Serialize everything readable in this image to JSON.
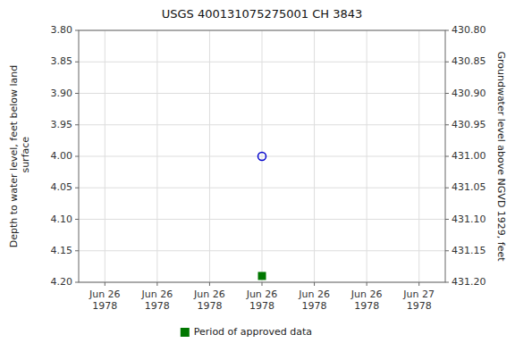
{
  "chart_data": {
    "type": "scatter",
    "title": "USGS 400131075275001 CH  3843",
    "y_label": "Depth to water level, feet below land\n surface",
    "y2_label": "Groundwater level above NGVD 1929, feet",
    "categories": [
      "Jun 26\n1978",
      "Jun 26\n1978",
      "Jun 26\n1978",
      "Jun 26\n1978",
      "Jun 26\n1978",
      "Jun 26\n1978",
      "Jun 27\n1978"
    ],
    "series": [
      {
        "color": "#0000cc",
        "marker": "open-circle",
        "values": [
          null,
          null,
          null,
          4.0,
          null,
          null,
          null
        ]
      },
      {
        "name": "Period of approved data",
        "color": "#007700",
        "marker": "square",
        "values": [
          null,
          null,
          null,
          4.19,
          null,
          null,
          null
        ]
      }
    ],
    "ylim": [
      4.2,
      3.8
    ],
    "yticks": [
      {
        "value": 3.8,
        "label": "3.80"
      },
      {
        "value": 3.85,
        "label": "3.85"
      },
      {
        "value": 3.9,
        "label": "3.90"
      },
      {
        "value": 3.95,
        "label": "3.95"
      },
      {
        "value": 4.0,
        "label": "4.00"
      },
      {
        "value": 4.05,
        "label": "4.05"
      },
      {
        "value": 4.1,
        "label": "4.10"
      },
      {
        "value": 4.15,
        "label": "4.15"
      },
      {
        "value": 4.2,
        "label": "4.20"
      }
    ],
    "y2lim": [
      431.2,
      430.8
    ],
    "y2ticks": [
      {
        "value": 431.2,
        "label": "431.20"
      },
      {
        "value": 431.15,
        "label": "431.15"
      },
      {
        "value": 431.1,
        "label": "431.10"
      },
      {
        "value": 431.05,
        "label": "431.05"
      },
      {
        "value": 431.0,
        "label": "431.00"
      },
      {
        "value": 430.95,
        "label": "430.95"
      },
      {
        "value": 430.9,
        "label": "430.90"
      },
      {
        "value": 430.85,
        "label": "430.85"
      },
      {
        "value": 430.8,
        "label": "430.80"
      }
    ],
    "grid": true,
    "legend": "bottom"
  }
}
